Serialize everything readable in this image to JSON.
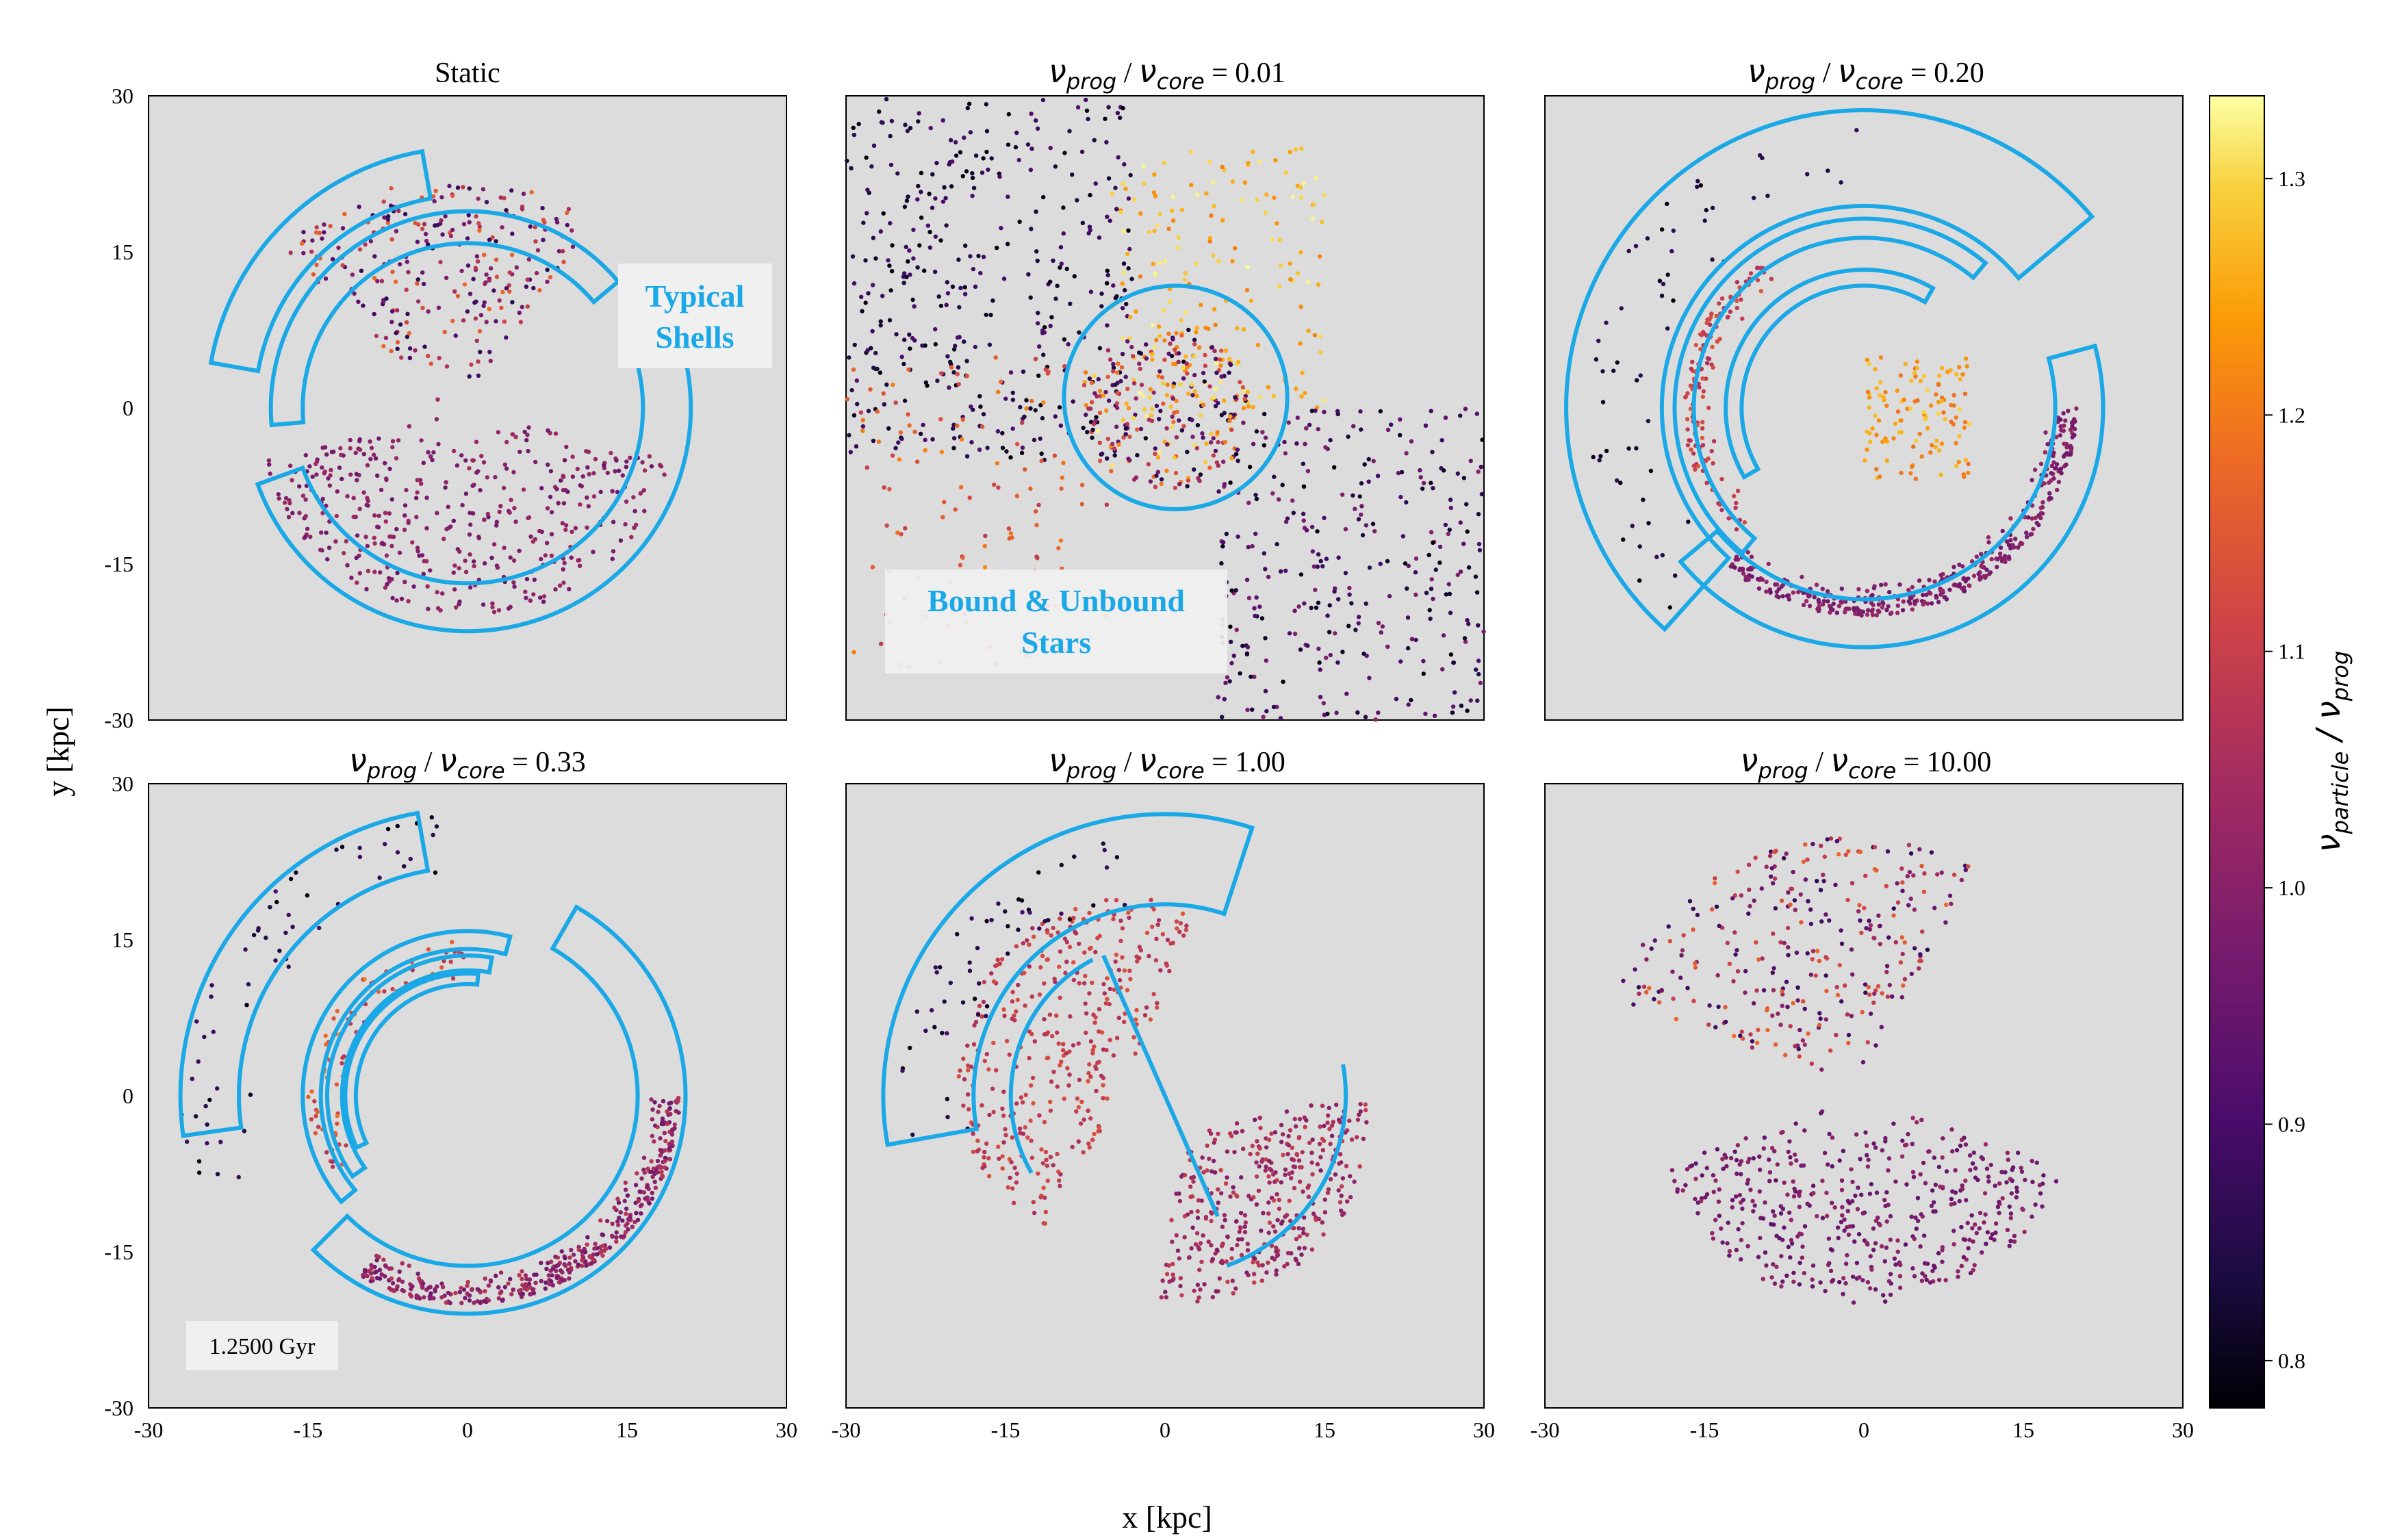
{
  "chart_data": [
    {
      "type": "scatter",
      "title": "Static",
      "xlim": [
        -30,
        30
      ],
      "ylim": [
        -30,
        30
      ],
      "xticks": [
        "-30",
        "-15",
        "0",
        "15",
        "30"
      ],
      "yticks": [
        "30",
        "15",
        "0",
        "-15",
        "-30"
      ],
      "xlabel": "",
      "ylabel": "y [kpc]",
      "annotation": [
        "Typical",
        "Shells"
      ],
      "shells": [
        {
          "r_in": 20,
          "r_out": 24.5,
          "a1": 100,
          "a2": 170
        },
        {
          "r_in": 15.5,
          "r_out": 18.5,
          "a1": 40,
          "a2": 185
        },
        {
          "r_in": 16.5,
          "r_out": 21,
          "a1": 200,
          "a2": 375
        }
      ],
      "regions": [
        {
          "kind": "wedge",
          "cx": -1,
          "cy": -1,
          "a1": 55,
          "a2": 135,
          "rmin": 2,
          "rmax": 23,
          "n": 260,
          "cmin": 0.85,
          "cmax": 1.18
        },
        {
          "kind": "wedge",
          "cx": 0,
          "cy": 0,
          "a1": 195,
          "a2": 345,
          "rmin": 2,
          "rmax": 20,
          "n": 420,
          "cmin": 0.95,
          "cmax": 1.04
        }
      ]
    },
    {
      "type": "scatter",
      "title": "ν_prog / ν_core = 0.01",
      "title_parts": {
        "v1": "ν",
        "s1": "prog",
        "sep": " / ",
        "v2": "ν",
        "s2": "core",
        "eq": " = 0.01"
      },
      "xlim": [
        -30,
        30
      ],
      "ylim": [
        -30,
        30
      ],
      "xticks": [
        "-30",
        "-15",
        "0",
        "15",
        "30"
      ],
      "annotation": [
        "Bound & Unbound",
        "Stars"
      ],
      "shells": [
        {
          "circle": true,
          "cx": 1,
          "cy": 1,
          "r": 10.5
        }
      ],
      "regions": [
        {
          "kind": "box",
          "x1": -30,
          "x2": -3,
          "y1": -5,
          "y2": 30,
          "n": 380,
          "cmin": 0.78,
          "cmax": 0.92
        },
        {
          "kind": "box",
          "x1": -30,
          "x2": -5,
          "y1": -25,
          "y2": 5,
          "n": 120,
          "cmin": 1.08,
          "cmax": 1.22
        },
        {
          "kind": "box",
          "x1": -5,
          "x2": 15,
          "y1": 0,
          "y2": 25,
          "n": 170,
          "cmin": 1.2,
          "cmax": 1.33
        },
        {
          "kind": "box",
          "x1": 5,
          "x2": 30,
          "y1": -30,
          "y2": 0,
          "n": 320,
          "cmin": 0.78,
          "cmax": 1.0
        },
        {
          "kind": "disk",
          "cx": 0,
          "cy": 0,
          "rmax": 8,
          "n": 260,
          "cmin": 0.8,
          "cmax": 1.33
        }
      ]
    },
    {
      "type": "scatter",
      "title": "ν_prog / ν_core = 0.20",
      "title_parts": {
        "v1": "ν",
        "s1": "prog",
        "sep": " / ",
        "v2": "ν",
        "s2": "core",
        "eq": " = 0.20"
      },
      "xlim": [
        -30,
        30
      ],
      "ylim": [
        -30,
        30
      ],
      "xticks": [
        "-30",
        "-15",
        "0",
        "15",
        "30"
      ],
      "shells": [
        {
          "r_in": 19,
          "r_out": 28,
          "a1": 40,
          "a2": 228
        },
        {
          "r_in": 16,
          "r_out": 17.8,
          "a1": 50,
          "a2": 230
        },
        {
          "r_in": 11.5,
          "r_out": 13,
          "a1": 60,
          "a2": 210
        },
        {
          "r_in": 18,
          "r_out": 22.5,
          "a1": 220,
          "a2": 375
        }
      ],
      "regions": [
        {
          "kind": "ring",
          "cx": 0,
          "cy": 0,
          "rmin": 14,
          "rmax": 17,
          "a1": 125,
          "a2": 225,
          "n": 130,
          "cmin": 1.05,
          "cmax": 1.15
        },
        {
          "kind": "ring",
          "cx": 0,
          "cy": 0,
          "rmin": 17,
          "rmax": 20,
          "a1": 230,
          "a2": 360,
          "n": 380,
          "cmin": 0.95,
          "cmax": 1.03
        },
        {
          "kind": "ring",
          "cx": 0,
          "cy": 0,
          "rmin": 19,
          "rmax": 27,
          "a1": 90,
          "a2": 230,
          "n": 60,
          "cmin": 0.78,
          "cmax": 0.88
        },
        {
          "kind": "box",
          "x1": 0,
          "x2": 10,
          "y1": -7,
          "y2": 5,
          "n": 120,
          "cmin": 1.18,
          "cmax": 1.3
        }
      ]
    },
    {
      "type": "scatter",
      "title": "ν_prog / ν_core = 0.33",
      "title_parts": {
        "v1": "ν",
        "s1": "prog",
        "sep": " / ",
        "v2": "ν",
        "s2": "core",
        "eq": " = 0.33"
      },
      "xlim": [
        -30,
        30
      ],
      "ylim": [
        -30,
        30
      ],
      "xticks": [
        "-30",
        "-15",
        "0",
        "15",
        "30"
      ],
      "yticks": [
        "30",
        "15",
        "0",
        "-15",
        "-30"
      ],
      "timestamp": "1.2500 Gyr",
      "shells": [
        {
          "r_in": 21.5,
          "r_out": 27,
          "a1": 100,
          "a2": 188
        },
        {
          "r_in": 13.8,
          "r_out": 15.5,
          "a1": 75,
          "a2": 220
        },
        {
          "r_in": 11.8,
          "r_out": 13.2,
          "a1": 80,
          "a2": 215
        },
        {
          "r_in": 10.5,
          "r_out": 11.5,
          "a1": 85,
          "a2": 205
        },
        {
          "r_in": 16,
          "r_out": 20.5,
          "a1": 225,
          "a2": 420
        }
      ],
      "regions": [
        {
          "kind": "ring",
          "cx": 0,
          "cy": 0,
          "rmin": 17,
          "rmax": 20,
          "a1": 240,
          "a2": 360,
          "n": 400,
          "cmin": 0.95,
          "cmax": 1.08
        },
        {
          "kind": "ring",
          "cx": 0,
          "cy": 0,
          "rmin": 20,
          "rmax": 27,
          "a1": 95,
          "a2": 200,
          "n": 60,
          "cmin": 0.78,
          "cmax": 0.9
        },
        {
          "kind": "ring",
          "cx": 0,
          "cy": 0,
          "rmin": 11,
          "rmax": 15,
          "a1": 90,
          "a2": 210,
          "n": 80,
          "cmin": 1.05,
          "cmax": 1.2
        }
      ]
    },
    {
      "type": "scatter",
      "title": "ν_prog / ν_core = 1.00",
      "title_parts": {
        "v1": "ν",
        "s1": "prog",
        "sep": " / ",
        "v2": "ν",
        "s2": "core",
        "eq": " = 1.00"
      },
      "xlim": [
        -30,
        30
      ],
      "ylim": [
        -30,
        30
      ],
      "xticks": [
        "-30",
        "-15",
        "0",
        "15",
        "30"
      ],
      "shells": [
        {
          "r_in": 18,
          "r_out": 26.5,
          "a1": 72,
          "a2": 190
        },
        {
          "r_in": 14.5,
          "r_out": 14.5,
          "a1": 118,
          "a2": 210,
          "arc_only": true
        },
        {
          "r_in": 17,
          "r_out": 17,
          "a1": 290,
          "a2": 370,
          "arc_only": true
        }
      ],
      "regions": [
        {
          "kind": "wedge",
          "cx": -3,
          "cy": 2,
          "a1": 70,
          "a2": 240,
          "rmin": 1,
          "rmax": 17,
          "n": 360,
          "cmin": 1.05,
          "cmax": 1.14
        },
        {
          "kind": "wedge",
          "cx": 2,
          "cy": -3,
          "a1": 260,
          "a2": 370,
          "rmin": 1,
          "rmax": 17,
          "n": 380,
          "cmin": 0.98,
          "cmax": 1.1
        },
        {
          "kind": "ring",
          "cx": 0,
          "cy": 0,
          "rmin": 16,
          "rmax": 25,
          "a1": 100,
          "a2": 190,
          "n": 55,
          "cmin": 0.78,
          "cmax": 0.9
        }
      ]
    },
    {
      "type": "scatter",
      "title": "ν_prog / ν_core = 10.00",
      "title_parts": {
        "v1": "ν",
        "s1": "prog",
        "sep": " / ",
        "v2": "ν",
        "s2": "core",
        "eq": " = 10.00"
      },
      "xlim": [
        -30,
        30
      ],
      "ylim": [
        -30,
        30
      ],
      "xticks": [
        "-30",
        "-15",
        "0",
        "15",
        "30"
      ],
      "shells": [],
      "regions": [
        {
          "kind": "wedge",
          "cx": -1,
          "cy": 1,
          "a1": 60,
          "a2": 160,
          "rmin": 2,
          "rmax": 24,
          "n": 300,
          "cmin": 0.85,
          "cmax": 1.18
        },
        {
          "kind": "wedge",
          "cx": 0,
          "cy": 0,
          "a1": 200,
          "a2": 340,
          "rmin": 2,
          "rmax": 20,
          "n": 460,
          "cmin": 0.93,
          "cmax": 1.03
        }
      ]
    }
  ],
  "axes": {
    "xlabel": "x [kpc]",
    "ylabel": "y [kpc]"
  },
  "colorbar": {
    "label_var": "ν",
    "label_sub1": "particle",
    "label_sep": " / ",
    "label_var2": "ν",
    "label_sub2": "prog",
    "min": 0.78,
    "max": 1.335,
    "ticks": [
      "0.8",
      "0.9",
      "1.0",
      "1.1",
      "1.2",
      "1.3"
    ],
    "colormap": "inferno"
  },
  "colors": {
    "panel_bg": "#dcdcdc",
    "shell_outline": "#1aa8e6",
    "annotation_text": "#1aa8e6",
    "annotation_box": "#f0f0f0"
  }
}
